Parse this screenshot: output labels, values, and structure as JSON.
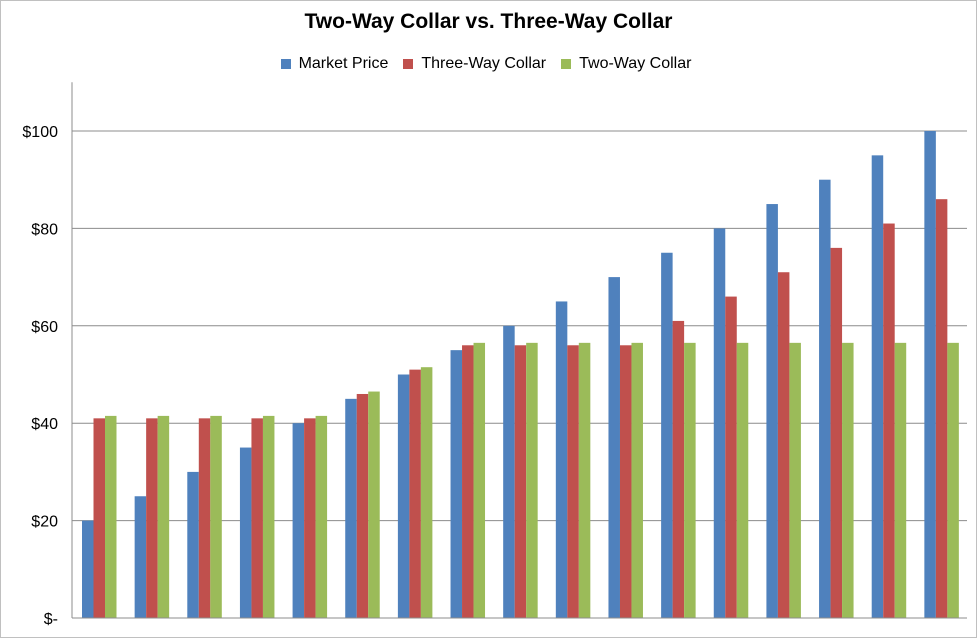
{
  "chart_data": {
    "type": "bar",
    "title": "Two-Way Collar vs. Three-Way Collar",
    "xlabel": "",
    "ylabel": "",
    "ylim": [
      0,
      110
    ],
    "yticks": [
      0,
      20,
      40,
      60,
      80,
      100
    ],
    "ytick_labels": [
      "$-",
      "$20",
      "$40",
      "$60",
      "$80",
      "$100"
    ],
    "grid": true,
    "legend_position": "top",
    "categories": [
      "",
      "",
      "",
      "",
      "",
      "",
      "",
      "",
      "",
      "",
      "",
      "",
      "",
      "",
      "",
      "",
      ""
    ],
    "series": [
      {
        "name": "Market Price",
        "color": "#4F81BD",
        "values": [
          20,
          25,
          30,
          35,
          40,
          45,
          50,
          55,
          60,
          65,
          70,
          75,
          80,
          85,
          90,
          95,
          100
        ]
      },
      {
        "name": "Three-Way Collar",
        "color": "#C0504D",
        "values": [
          41,
          41,
          41,
          41,
          41,
          46,
          51,
          56,
          56,
          56,
          56,
          61,
          66,
          71,
          76,
          81,
          86
        ]
      },
      {
        "name": "Two-Way Collar",
        "color": "#9BBB59",
        "values": [
          41.5,
          41.5,
          41.5,
          41.5,
          41.5,
          46.5,
          51.5,
          56.5,
          56.5,
          56.5,
          56.5,
          56.5,
          56.5,
          56.5,
          56.5,
          56.5,
          56.5
        ]
      }
    ]
  }
}
